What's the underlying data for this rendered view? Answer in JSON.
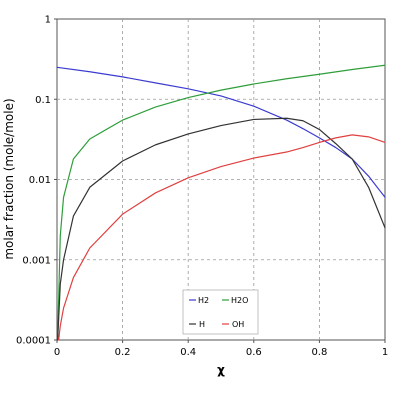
{
  "chart_data": {
    "type": "line",
    "title": "",
    "xlabel": "χ",
    "ylabel": "molar fraction (mole/mole)",
    "xlim": [
      0,
      1
    ],
    "ylim": [
      0.0001,
      1
    ],
    "yscale": "log",
    "grid": true,
    "legend_position": "bottom-right",
    "x_ticks": [
      "0",
      "0.2",
      "0.4",
      "0.6",
      "0.8",
      "1"
    ],
    "y_ticks": [
      "0.0001",
      "0.001",
      "0.01",
      "0.1",
      "1"
    ],
    "series": [
      {
        "name": "H2",
        "color": "#3b3bd0",
        "x": [
          0,
          0.1,
          0.2,
          0.3,
          0.4,
          0.5,
          0.6,
          0.7,
          0.75,
          0.8,
          0.85,
          0.9,
          0.95,
          1.0
        ],
        "y": [
          0.25,
          0.22,
          0.19,
          0.16,
          0.135,
          0.11,
          0.082,
          0.055,
          0.043,
          0.033,
          0.025,
          0.018,
          0.011,
          0.006
        ]
      },
      {
        "name": "H2O",
        "color": "#2e9e3a",
        "x": [
          0.002,
          0.01,
          0.02,
          0.05,
          0.1,
          0.2,
          0.3,
          0.4,
          0.5,
          0.6,
          0.7,
          0.8,
          0.9,
          1.0
        ],
        "y": [
          0.0001,
          0.002,
          0.006,
          0.018,
          0.032,
          0.055,
          0.08,
          0.105,
          0.13,
          0.155,
          0.18,
          0.205,
          0.235,
          0.265
        ]
      },
      {
        "name": "H",
        "color": "#333333",
        "x": [
          0.002,
          0.01,
          0.02,
          0.05,
          0.1,
          0.2,
          0.3,
          0.4,
          0.5,
          0.6,
          0.7,
          0.75,
          0.8,
          0.85,
          0.9,
          0.95,
          1.0
        ],
        "y": [
          0.0001,
          0.0005,
          0.001,
          0.0035,
          0.008,
          0.017,
          0.027,
          0.037,
          0.047,
          0.056,
          0.058,
          0.054,
          0.042,
          0.028,
          0.018,
          0.008,
          0.0025
        ]
      },
      {
        "name": "OH",
        "color": "#e04040",
        "x": [
          0.005,
          0.01,
          0.02,
          0.05,
          0.1,
          0.2,
          0.3,
          0.4,
          0.5,
          0.6,
          0.7,
          0.75,
          0.8,
          0.85,
          0.9,
          0.95,
          1.0
        ],
        "y": [
          0.0001,
          0.00015,
          0.00025,
          0.0006,
          0.0014,
          0.0037,
          0.0068,
          0.0105,
          0.0145,
          0.0185,
          0.022,
          0.025,
          0.029,
          0.033,
          0.036,
          0.034,
          0.029
        ]
      }
    ]
  }
}
